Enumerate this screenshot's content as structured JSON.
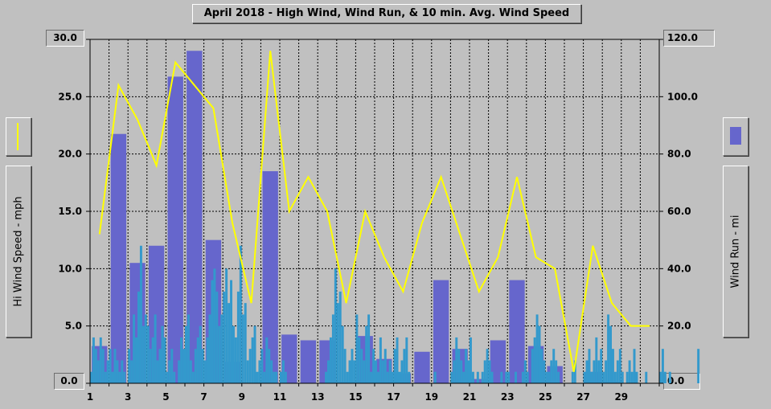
{
  "chart_data": {
    "type": "bar",
    "title": "April 2018 - High Wind, Wind Run, & 10 min. Avg. Wind Speed",
    "y_left": {
      "label": "Hi Wind Speed - mph",
      "range": [
        0,
        30
      ],
      "ticks": [
        "0.0",
        "5.0",
        "10.0",
        "15.0",
        "20.0",
        "25.0",
        "30.0"
      ]
    },
    "y_right": {
      "label": "Wind Run - mi",
      "range": [
        0,
        120
      ],
      "ticks": [
        "0.0",
        "20.0",
        "40.0",
        "60.0",
        "80.0",
        "100.0",
        "120.0"
      ]
    },
    "x": {
      "range": [
        1,
        31
      ],
      "ticks": [
        "1",
        "3",
        "5",
        "7",
        "9",
        "11",
        "13",
        "15",
        "17",
        "19",
        "21",
        "23",
        "25",
        "27",
        "29"
      ]
    },
    "grid": true,
    "series": [
      {
        "kind": "line",
        "axis": "left",
        "color": "#ffff00",
        "x": [
          1.5,
          2.5,
          3.5,
          4.5,
          5.5,
          6.5,
          7.5,
          8.5,
          9.5,
          10.5,
          11.5,
          12.5,
          13.5,
          14.5,
          15.5,
          16.5,
          17.5,
          18.5,
          19.5,
          20.5,
          21.5,
          22.5,
          23.5,
          24.5,
          25.5,
          26.5,
          27.5,
          28.5,
          29.5,
          30.5
        ],
        "values": [
          13,
          26,
          23,
          19,
          28,
          26,
          24,
          14,
          7,
          29,
          15,
          18,
          15,
          7,
          15,
          11,
          8,
          14,
          18,
          13,
          8,
          11,
          18,
          11,
          10,
          1,
          12,
          7,
          5,
          5
        ]
      },
      {
        "kind": "bar",
        "axis": "right",
        "color": "#6666cc",
        "x": [
          1.5,
          2.5,
          3.5,
          4.5,
          5.5,
          6.5,
          7.5,
          8.5,
          9.5,
          10.5,
          11.5,
          12.5,
          13.5,
          14.5,
          15.5,
          16.5,
          17.5,
          18.5,
          19.5,
          20.5,
          21.5,
          22.5,
          23.5,
          24.5,
          25.5,
          26.5,
          27.5,
          28.5,
          29.5,
          30.5
        ],
        "values": [
          13,
          87,
          42,
          48,
          107,
          116,
          50,
          7.5,
          0,
          74,
          17,
          15,
          15,
          0.5,
          16.5,
          8.5,
          3.5,
          11,
          36,
          12,
          1.5,
          15,
          36,
          13,
          6,
          0,
          4,
          0.5,
          0,
          0
        ]
      },
      {
        "kind": "bar",
        "axis": "left",
        "color": "#3399cc",
        "x_start": 1,
        "x_step": 0.125,
        "values": [
          1,
          4,
          3,
          2,
          4,
          3,
          1,
          2,
          3,
          1,
          3,
          2,
          1,
          2,
          1,
          0,
          3,
          2,
          6,
          4,
          8,
          12,
          5,
          6,
          5,
          3,
          4,
          6,
          2,
          3,
          5,
          4,
          1,
          2,
          3,
          1,
          0,
          2,
          4,
          3,
          5,
          6,
          2,
          1,
          3,
          4,
          5,
          3,
          2,
          4,
          6,
          9,
          10,
          8,
          5,
          6,
          8,
          10,
          7,
          9,
          5,
          4,
          8,
          12,
          6,
          7,
          2,
          3,
          4,
          5,
          1,
          2,
          3,
          1,
          4,
          3,
          2,
          1,
          1,
          0,
          1,
          2,
          1,
          0,
          0,
          0,
          0,
          0,
          0,
          0,
          0,
          0,
          0,
          0,
          0,
          0,
          0,
          0,
          0,
          1,
          2,
          4,
          6,
          10,
          7,
          8,
          5,
          3,
          1,
          2,
          3,
          2,
          6,
          4,
          3,
          2,
          5,
          6,
          1,
          3,
          2,
          1,
          4,
          2,
          3,
          1,
          2,
          1,
          3,
          4,
          1,
          2,
          3,
          4,
          1,
          0,
          0,
          0,
          0,
          0,
          0,
          0,
          0,
          0,
          0,
          1,
          0,
          0,
          0,
          0,
          0,
          0,
          1,
          2,
          4,
          3,
          2,
          1,
          3,
          2,
          4,
          1,
          0,
          1,
          0,
          1,
          2,
          3,
          2,
          1,
          0,
          0,
          0,
          1,
          0,
          1,
          1,
          0,
          0,
          1,
          0,
          0,
          1,
          2,
          1,
          0,
          3,
          4,
          6,
          5,
          3,
          2,
          1,
          1,
          2,
          3,
          2,
          1,
          0,
          0,
          0,
          0,
          0,
          1,
          2,
          0,
          0,
          0,
          1,
          2,
          3,
          1,
          2,
          4,
          2,
          3,
          1,
          2,
          6,
          5,
          3,
          1,
          2,
          3,
          1,
          0,
          1,
          2,
          1,
          3,
          1,
          0,
          0,
          0,
          1,
          0,
          0,
          0,
          0,
          0,
          1,
          3,
          1,
          0,
          1,
          0,
          0,
          0,
          0,
          0,
          0,
          0,
          0,
          0,
          0,
          0,
          3,
          0,
          0,
          0,
          0,
          0,
          0,
          0,
          0,
          0,
          0,
          0,
          0,
          0,
          0
        ]
      }
    ]
  }
}
